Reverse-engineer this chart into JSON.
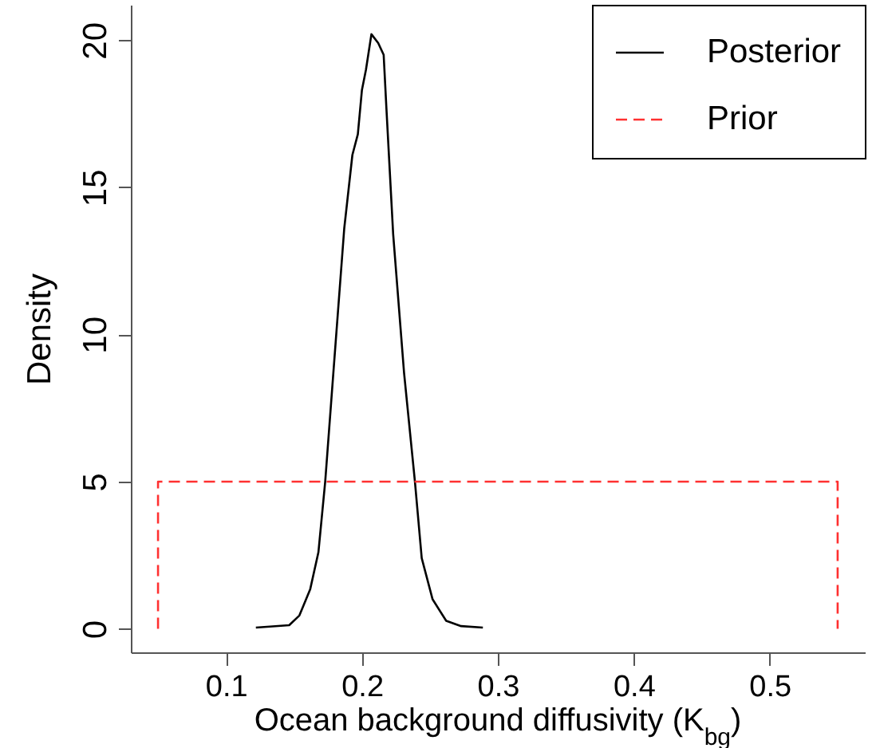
{
  "chart_data": {
    "type": "line",
    "xlabel": "Ocean background diffusivity (K$_{bg}$)",
    "ylabel": "Density",
    "xlim": [
      0.03,
      0.57
    ],
    "ylim": [
      -0.8,
      21.2
    ],
    "xticks": [
      0.1,
      0.2,
      0.3,
      0.4,
      0.5
    ],
    "yticks": [
      0,
      5,
      10,
      15,
      20
    ],
    "legend": "top right",
    "marker": "none",
    "series": [
      {
        "name": "Posterior",
        "color": "#000000",
        "line_style": "solid",
        "x": [
          0.122,
          0.1465,
          0.154,
          0.162,
          0.168,
          0.173,
          0.179,
          0.187,
          0.193,
          0.197,
          0.2,
          0.203,
          0.207,
          0.212,
          0.216,
          0.218,
          0.223,
          0.231,
          0.239,
          0.244,
          0.252,
          0.262,
          0.273,
          0.289
        ],
        "values": [
          0.04,
          0.12,
          0.45,
          1.35,
          2.6,
          5.0,
          8.7,
          13.6,
          16.1,
          16.8,
          18.3,
          19.0,
          20.2,
          19.9,
          19.5,
          17.7,
          13.4,
          8.7,
          5.0,
          2.4,
          1.0,
          0.27,
          0.09,
          0.04
        ]
      },
      {
        "name": "Prior",
        "color": "#ff3030",
        "line_style": "dashed",
        "x": [
          0.05,
          0.05,
          0.55,
          0.55
        ],
        "values": [
          0,
          5,
          5,
          0
        ]
      }
    ]
  }
}
